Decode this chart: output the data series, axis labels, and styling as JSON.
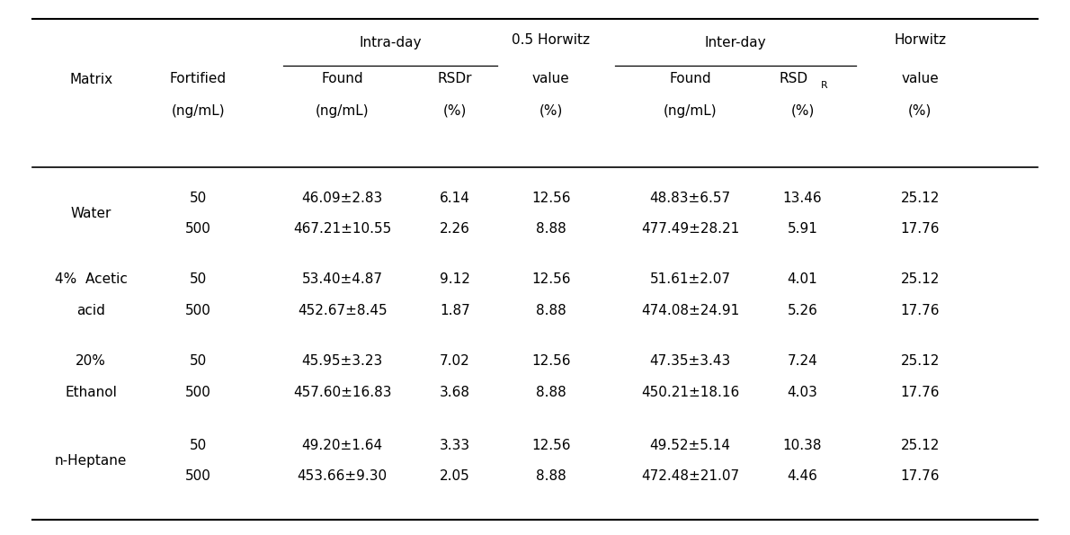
{
  "col_x": {
    "matrix": 0.085,
    "fortified": 0.185,
    "intra_found": 0.32,
    "intra_rsdr": 0.425,
    "horwitz05": 0.515,
    "inter_found": 0.645,
    "inter_rsdr": 0.75,
    "horwitz": 0.86
  },
  "intra_span": [
    0.265,
    0.465
  ],
  "inter_span": [
    0.575,
    0.8
  ],
  "rows": [
    {
      "matrix": [
        "Water"
      ],
      "data": [
        {
          "fortified": "50",
          "intra_found": "46.09±2.83",
          "intra_rsdr": "6.14",
          "horwitz05": "12.56",
          "inter_found": "48.83±6.57",
          "inter_rsdr": "13.46",
          "horwitz": "25.12"
        },
        {
          "fortified": "500",
          "intra_found": "467.21±10.55",
          "intra_rsdr": "2.26",
          "horwitz05": "8.88",
          "inter_found": "477.49±28.21",
          "inter_rsdr": "5.91",
          "horwitz": "17.76"
        }
      ]
    },
    {
      "matrix": [
        "4%  Acetic",
        "acid"
      ],
      "data": [
        {
          "fortified": "50",
          "intra_found": "53.40±4.87",
          "intra_rsdr": "9.12",
          "horwitz05": "12.56",
          "inter_found": "51.61±2.07",
          "inter_rsdr": "4.01",
          "horwitz": "25.12"
        },
        {
          "fortified": "500",
          "intra_found": "452.67±8.45",
          "intra_rsdr": "1.87",
          "horwitz05": "8.88",
          "inter_found": "474.08±24.91",
          "inter_rsdr": "5.26",
          "horwitz": "17.76"
        }
      ]
    },
    {
      "matrix": [
        "20%",
        "Ethanol"
      ],
      "data": [
        {
          "fortified": "50",
          "intra_found": "45.95±3.23",
          "intra_rsdr": "7.02",
          "horwitz05": "12.56",
          "inter_found": "47.35±3.43",
          "inter_rsdr": "7.24",
          "horwitz": "25.12"
        },
        {
          "fortified": "500",
          "intra_found": "457.60±16.83",
          "intra_rsdr": "3.68",
          "horwitz05": "8.88",
          "inter_found": "450.21±18.16",
          "inter_rsdr": "4.03",
          "horwitz": "17.76"
        }
      ]
    },
    {
      "matrix": [
        "n-Heptane"
      ],
      "data": [
        {
          "fortified": "50",
          "intra_found": "49.20±1.64",
          "intra_rsdr": "3.33",
          "horwitz05": "12.56",
          "inter_found": "49.52±5.14",
          "inter_rsdr": "10.38",
          "horwitz": "25.12"
        },
        {
          "fortified": "500",
          "intra_found": "453.66±9.30",
          "intra_rsdr": "2.05",
          "horwitz05": "8.88",
          "inter_found": "472.48±21.07",
          "inter_rsdr": "4.46",
          "horwitz": "17.76"
        }
      ]
    }
  ],
  "font_size": 11.0,
  "bg_color": "white",
  "text_color": "black"
}
